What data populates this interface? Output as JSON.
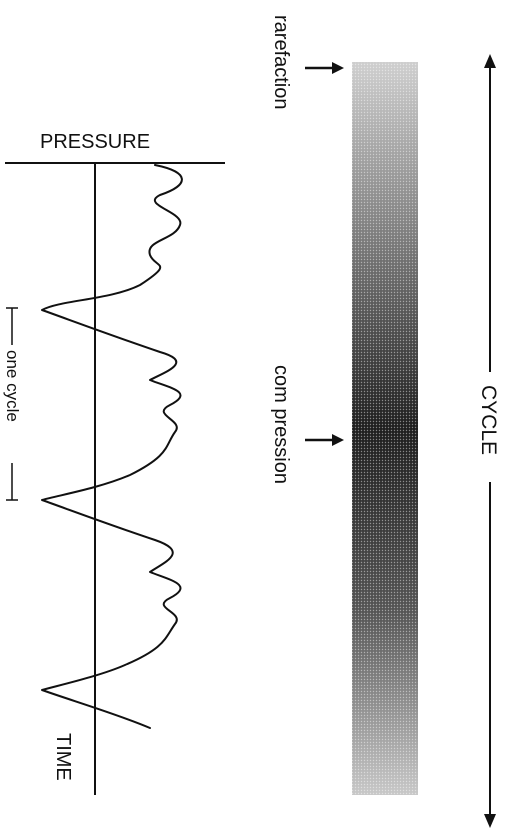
{
  "pressure_label": "PRESSURE",
  "time_label": "TIME",
  "period_label": "one cycle",
  "rarefaction_label": "rarefaction",
  "compression_label": "com pression",
  "cycle_label": "CYCLE"
}
